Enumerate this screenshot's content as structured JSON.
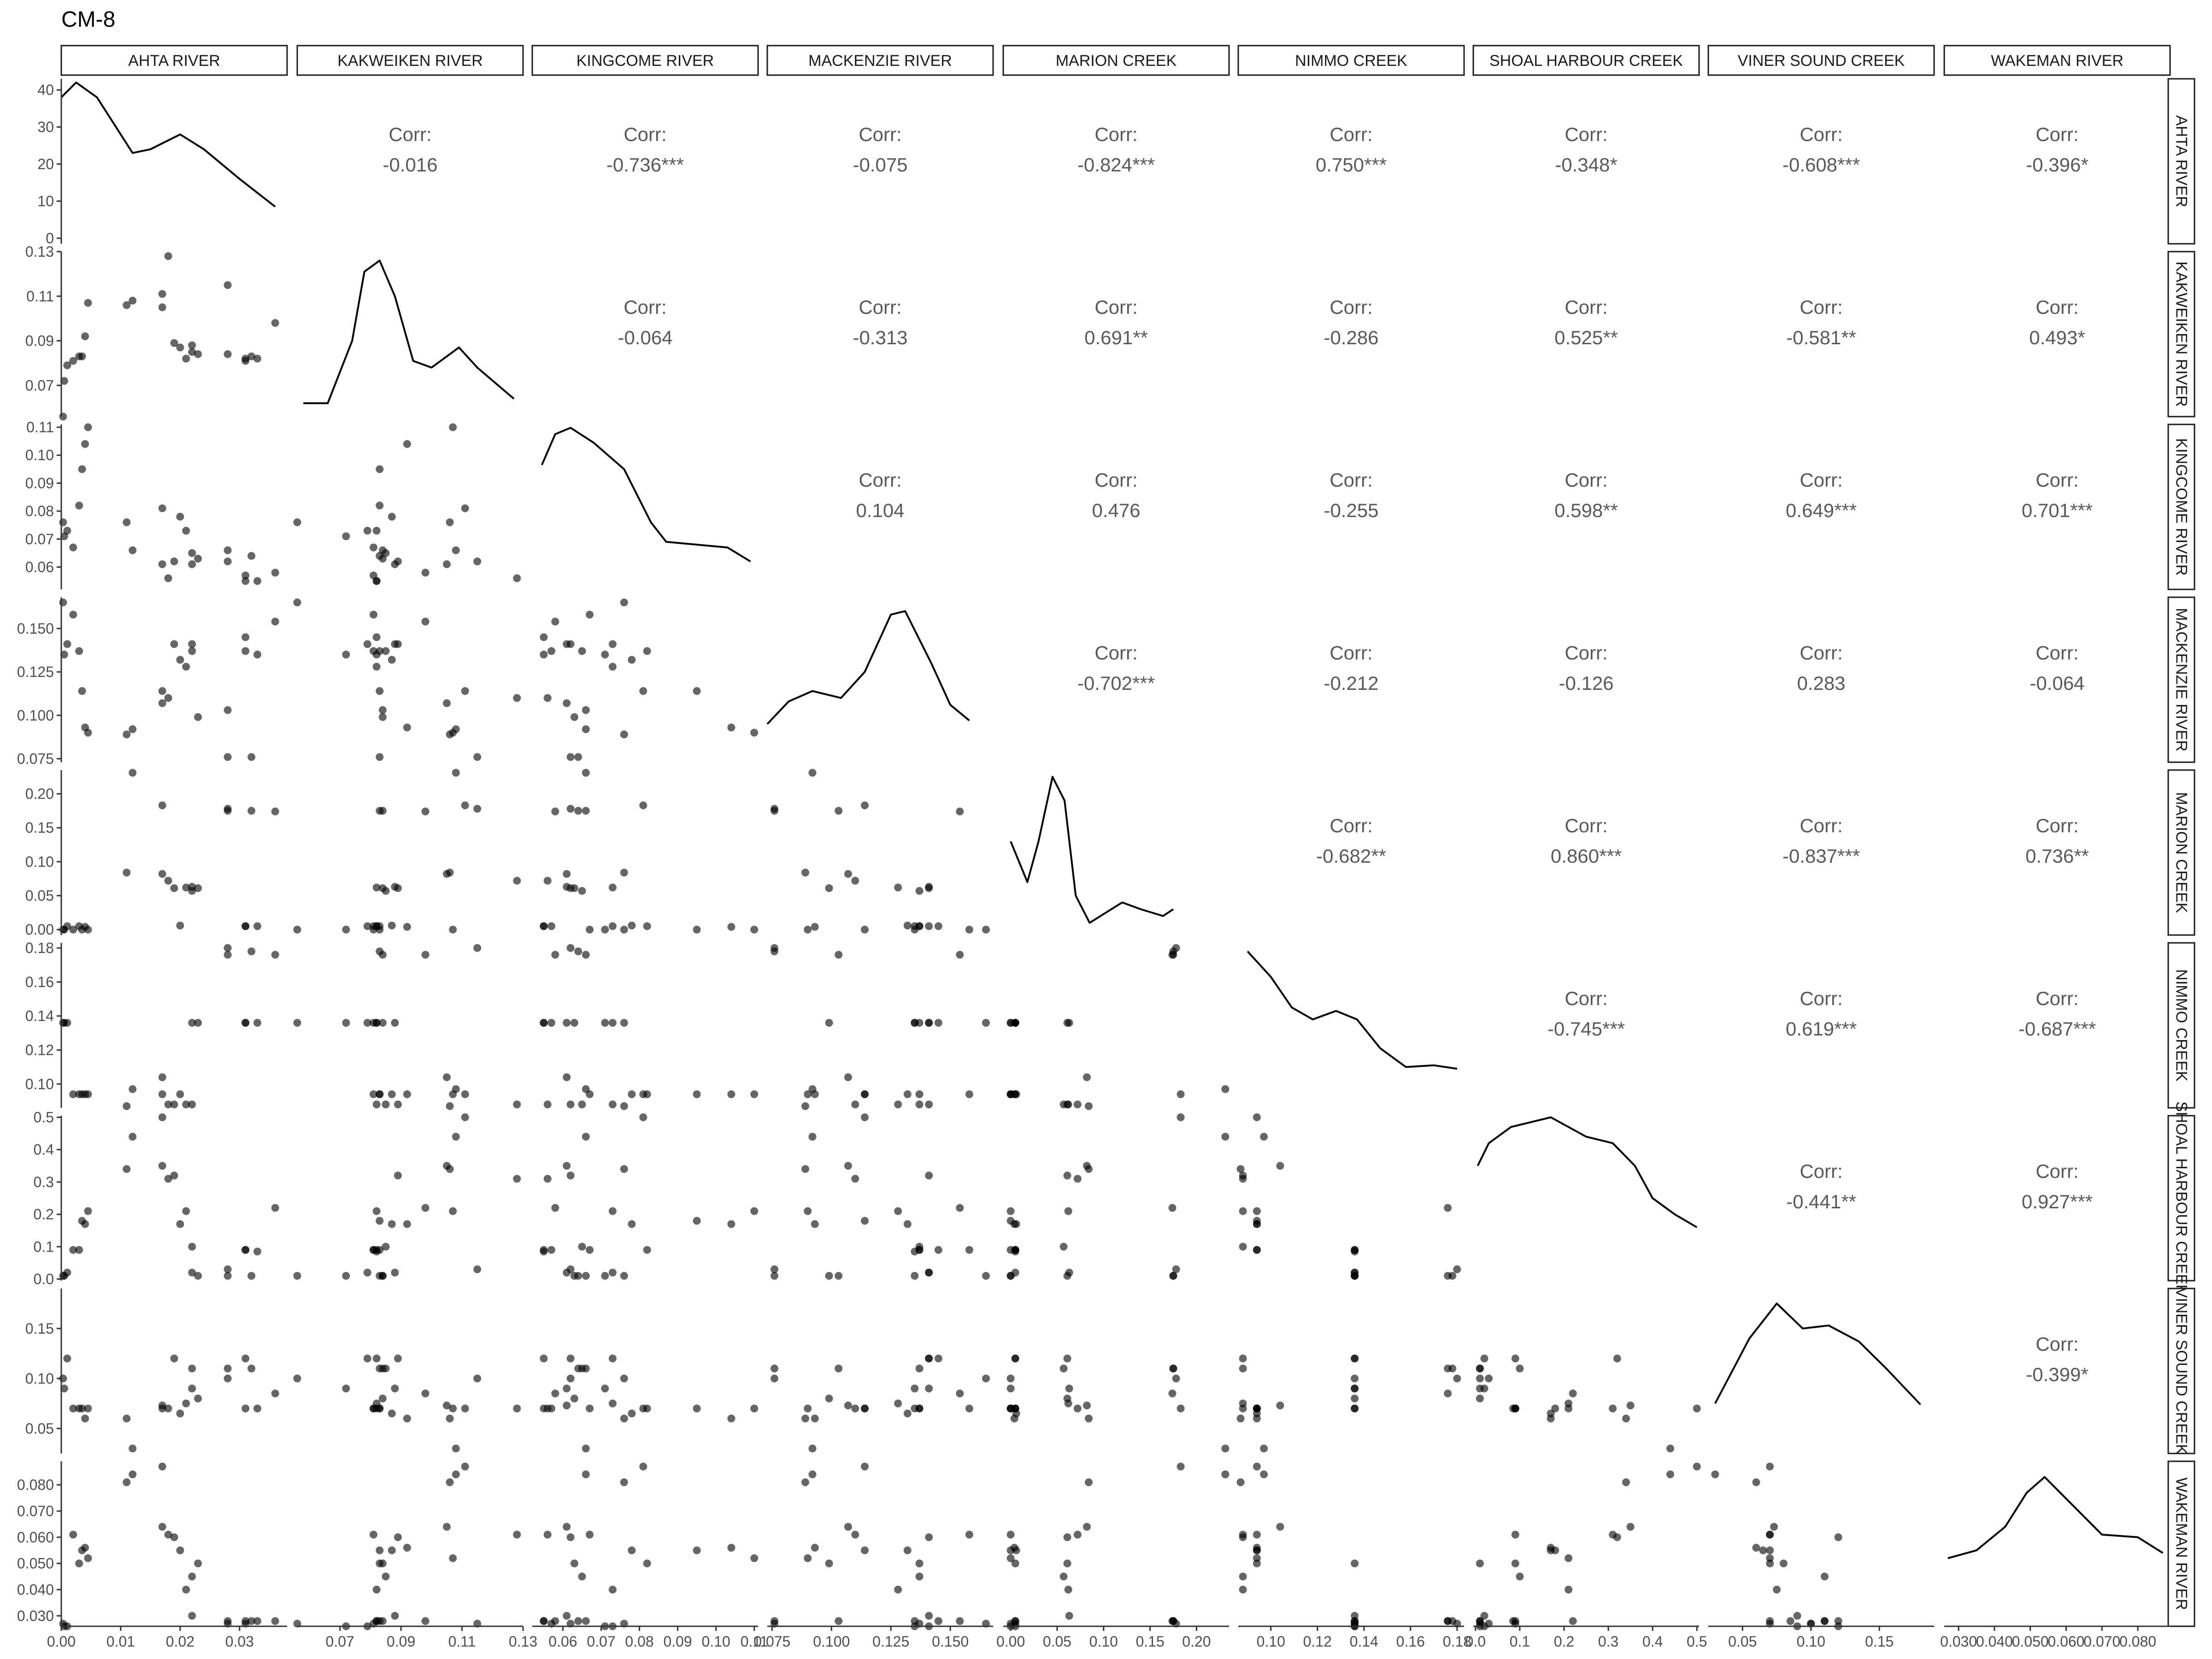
{
  "chart_data": {
    "type": "scatter",
    "title": "CM-8",
    "variables": [
      "AHTA RIVER",
      "KAKWEIKEN RIVER",
      "KINGCOME RIVER",
      "MACKENZIE RIVER",
      "MARION CREEK",
      "NIMMO CREEK",
      "SHOAL HARBOUR CREEK",
      "VINER SOUND CREEK",
      "WAKEMAN RIVER"
    ],
    "corr_label": "Corr:",
    "correlations": [
      {
        "row": 0,
        "col": 1,
        "value": "-0.016"
      },
      {
        "row": 0,
        "col": 2,
        "value": "-0.736***"
      },
      {
        "row": 0,
        "col": 3,
        "value": "-0.075"
      },
      {
        "row": 0,
        "col": 4,
        "value": "-0.824***"
      },
      {
        "row": 0,
        "col": 5,
        "value": "0.750***"
      },
      {
        "row": 0,
        "col": 6,
        "value": "-0.348*"
      },
      {
        "row": 0,
        "col": 7,
        "value": "-0.608***"
      },
      {
        "row": 0,
        "col": 8,
        "value": "-0.396*"
      },
      {
        "row": 1,
        "col": 2,
        "value": "-0.064"
      },
      {
        "row": 1,
        "col": 3,
        "value": "-0.313"
      },
      {
        "row": 1,
        "col": 4,
        "value": "0.691**"
      },
      {
        "row": 1,
        "col": 5,
        "value": "-0.286"
      },
      {
        "row": 1,
        "col": 6,
        "value": "0.525**"
      },
      {
        "row": 1,
        "col": 7,
        "value": "-0.581**"
      },
      {
        "row": 1,
        "col": 8,
        "value": "0.493*"
      },
      {
        "row": 2,
        "col": 3,
        "value": "0.104"
      },
      {
        "row": 2,
        "col": 4,
        "value": "0.476"
      },
      {
        "row": 2,
        "col": 5,
        "value": "-0.255"
      },
      {
        "row": 2,
        "col": 6,
        "value": "0.598**"
      },
      {
        "row": 2,
        "col": 7,
        "value": "0.649***"
      },
      {
        "row": 2,
        "col": 8,
        "value": "0.701***"
      },
      {
        "row": 3,
        "col": 4,
        "value": "-0.702***"
      },
      {
        "row": 3,
        "col": 5,
        "value": "-0.212"
      },
      {
        "row": 3,
        "col": 6,
        "value": "-0.126"
      },
      {
        "row": 3,
        "col": 7,
        "value": "0.283"
      },
      {
        "row": 3,
        "col": 8,
        "value": "-0.064"
      },
      {
        "row": 4,
        "col": 5,
        "value": "-0.682**"
      },
      {
        "row": 4,
        "col": 6,
        "value": "0.860***"
      },
      {
        "row": 4,
        "col": 7,
        "value": "-0.837***"
      },
      {
        "row": 4,
        "col": 8,
        "value": "0.736**"
      },
      {
        "row": 5,
        "col": 6,
        "value": "-0.745***"
      },
      {
        "row": 5,
        "col": 7,
        "value": "0.619***"
      },
      {
        "row": 5,
        "col": 8,
        "value": "-0.687***"
      },
      {
        "row": 6,
        "col": 7,
        "value": "-0.441**"
      },
      {
        "row": 6,
        "col": 8,
        "value": "0.927***"
      },
      {
        "row": 7,
        "col": 8,
        "value": "-0.399*"
      }
    ],
    "x_ticks": [
      {
        "labels": [
          "0.00",
          "0.01",
          "0.02",
          "0.03"
        ],
        "values": [
          0,
          0.01,
          0.02,
          0.03
        ],
        "range": [
          0,
          0.038
        ]
      },
      {
        "labels": [
          "0.07",
          "0.09",
          "0.11",
          "0.13"
        ],
        "values": [
          0.07,
          0.09,
          0.11,
          0.13
        ],
        "range": [
          0.056,
          0.13
        ]
      },
      {
        "labels": [
          "0.06",
          "0.07",
          "0.08",
          "0.09",
          "0.10",
          "0.11"
        ],
        "values": [
          0.06,
          0.07,
          0.08,
          0.09,
          0.1,
          0.11
        ],
        "range": [
          0.052,
          0.111
        ]
      },
      {
        "labels": [
          "0.075",
          "0.100",
          "0.125",
          "0.150"
        ],
        "values": [
          0.075,
          0.1,
          0.125,
          0.15
        ],
        "range": [
          0.073,
          0.168
        ]
      },
      {
        "labels": [
          "0.00",
          "0.05",
          "0.10",
          "0.15",
          "0.20"
        ],
        "values": [
          0,
          0.05,
          0.1,
          0.15,
          0.2
        ],
        "range": [
          -0.008,
          0.235
        ]
      },
      {
        "labels": [
          "0.10",
          "0.12",
          "0.14",
          "0.16",
          "0.18"
        ],
        "values": [
          0.1,
          0.12,
          0.14,
          0.16,
          0.18
        ],
        "range": [
          0.086,
          0.183
        ]
      },
      {
        "labels": [
          "0.0",
          "0.1",
          "0.2",
          "0.3",
          "0.4",
          "0.5"
        ],
        "values": [
          0,
          0.1,
          0.2,
          0.3,
          0.4,
          0.5
        ],
        "range": [
          -0.005,
          0.505
        ]
      },
      {
        "labels": [
          "0.05",
          "0.10",
          "0.15"
        ],
        "values": [
          0.05,
          0.1,
          0.15
        ],
        "range": [
          0.025,
          0.19
        ]
      },
      {
        "labels": [
          "0.030",
          "0.040",
          "0.050",
          "0.060",
          "0.070",
          "0.080"
        ],
        "values": [
          0.03,
          0.04,
          0.05,
          0.06,
          0.07,
          0.08
        ],
        "range": [
          0.026,
          0.089
        ]
      }
    ],
    "y_ticks": [
      {
        "labels": [
          "0",
          "10",
          "20",
          "30",
          "40"
        ],
        "values": [
          0,
          10,
          20,
          30,
          40
        ],
        "range": [
          -1.5,
          43
        ]
      },
      {
        "labels": [
          "0.07",
          "0.09",
          "0.11",
          "0.13"
        ],
        "values": [
          0.07,
          0.09,
          0.11,
          0.13
        ],
        "range": [
          0.056,
          0.13
        ]
      },
      {
        "labels": [
          "0.06",
          "0.07",
          "0.08",
          "0.09",
          "0.10",
          "0.11"
        ],
        "values": [
          0.06,
          0.07,
          0.08,
          0.09,
          0.1,
          0.11
        ],
        "range": [
          0.052,
          0.111
        ]
      },
      {
        "labels": [
          "0.075",
          "0.100",
          "0.125",
          "0.150"
        ],
        "values": [
          0.075,
          0.1,
          0.125,
          0.15
        ],
        "range": [
          0.073,
          0.168
        ]
      },
      {
        "labels": [
          "0.00",
          "0.05",
          "0.10",
          "0.15",
          "0.20"
        ],
        "values": [
          0,
          0.05,
          0.1,
          0.15,
          0.2
        ],
        "range": [
          -0.008,
          0.235
        ]
      },
      {
        "labels": [
          "0.10",
          "0.12",
          "0.14",
          "0.16",
          "0.18"
        ],
        "values": [
          0.1,
          0.12,
          0.14,
          0.16,
          0.18
        ],
        "range": [
          0.086,
          0.183
        ]
      },
      {
        "labels": [
          "0.0",
          "0.1",
          "0.2",
          "0.3",
          "0.4",
          "0.5"
        ],
        "values": [
          0,
          0.1,
          0.2,
          0.3,
          0.4,
          0.5
        ],
        "range": [
          -0.005,
          0.505
        ]
      },
      {
        "labels": [
          "0.05",
          "0.10",
          "0.15"
        ],
        "values": [
          0.05,
          0.1,
          0.15
        ],
        "range": [
          0.025,
          0.19
        ]
      },
      {
        "labels": [
          "0.030",
          "0.040",
          "0.050",
          "0.060",
          "0.070",
          "0.080"
        ],
        "values": [
          0.03,
          0.04,
          0.05,
          0.06,
          0.07,
          0.08
        ],
        "range": [
          0.026,
          0.089
        ]
      }
    ],
    "observations": [
      [
        0.0003,
        0.056,
        0.076,
        0.165,
        0.0,
        0.136,
        0.01,
        0.1,
        0.027
      ],
      [
        0.0005,
        0.072,
        0.071,
        0.135,
        0.0,
        0.136,
        0.01,
        0.09,
        0.026
      ],
      [
        0.001,
        0.079,
        0.073,
        0.141,
        0.005,
        0.136,
        0.02,
        0.12,
        0.026
      ],
      [
        0.002,
        0.081,
        0.067,
        0.158,
        0.0,
        0.094,
        0.09,
        0.07,
        0.061
      ],
      [
        0.003,
        0.083,
        0.082,
        0.137,
        0.005,
        0.094,
        0.09,
        0.07,
        0.05
      ],
      [
        0.0035,
        0.083,
        0.095,
        0.114,
        0.0,
        0.094,
        0.18,
        0.07,
        0.055
      ],
      [
        0.004,
        0.092,
        0.104,
        0.093,
        0.004,
        0.094,
        0.17,
        0.06,
        0.056
      ],
      [
        0.0045,
        0.107,
        0.11,
        0.09,
        0.0,
        0.094,
        0.21,
        0.07,
        0.052
      ],
      [
        0.011,
        0.106,
        0.076,
        0.089,
        0.084,
        0.087,
        0.34,
        0.06,
        0.081
      ],
      [
        0.012,
        0.108,
        0.066,
        0.092,
        0.231,
        0.097,
        0.44,
        0.03,
        0.084
      ],
      [
        0.017,
        0.111,
        0.081,
        0.114,
        0.183,
        0.094,
        0.5,
        0.07,
        0.087
      ],
      [
        0.017,
        0.105,
        0.061,
        0.107,
        0.082,
        0.104,
        0.35,
        0.073,
        0.064
      ],
      [
        0.018,
        0.128,
        0.056,
        0.11,
        0.072,
        0.088,
        0.31,
        0.07,
        0.061
      ],
      [
        0.019,
        0.089,
        0.062,
        0.141,
        0.061,
        0.088,
        0.32,
        0.12,
        0.06
      ],
      [
        0.02,
        0.087,
        0.078,
        0.132,
        0.006,
        0.094,
        0.17,
        0.065,
        0.055
      ],
      [
        0.021,
        0.082,
        0.073,
        0.128,
        0.062,
        0.088,
        0.21,
        0.075,
        0.04
      ],
      [
        0.022,
        0.085,
        0.065,
        0.137,
        0.057,
        0.088,
        0.1,
        0.11,
        0.045
      ],
      [
        0.022,
        0.088,
        0.061,
        0.141,
        0.063,
        0.136,
        0.02,
        0.09,
        0.03
      ],
      [
        0.023,
        0.084,
        0.063,
        0.099,
        0.061,
        0.136,
        0.01,
        0.08,
        0.05
      ],
      [
        0.028,
        0.115,
        0.062,
        0.076,
        0.178,
        0.18,
        0.03,
        0.1,
        0.027
      ],
      [
        0.028,
        0.084,
        0.066,
        0.103,
        0.175,
        0.176,
        0.01,
        0.11,
        0.028
      ],
      [
        0.031,
        0.081,
        0.057,
        0.137,
        0.005,
        0.136,
        0.09,
        0.07,
        0.027
      ],
      [
        0.031,
        0.082,
        0.055,
        0.145,
        0.005,
        0.136,
        0.09,
        0.12,
        0.028
      ],
      [
        0.032,
        0.083,
        0.064,
        0.076,
        0.175,
        0.178,
        0.01,
        0.11,
        0.028
      ],
      [
        0.033,
        0.082,
        0.055,
        0.135,
        0.005,
        0.136,
        0.085,
        0.07,
        0.028
      ],
      [
        0.036,
        0.098,
        0.058,
        0.154,
        0.174,
        0.176,
        0.22,
        0.085,
        0.028
      ]
    ],
    "density_curves": [
      [
        [
          0.0,
          38
        ],
        [
          0.0025,
          42
        ],
        [
          0.006,
          38
        ],
        [
          0.012,
          23
        ],
        [
          0.015,
          24
        ],
        [
          0.02,
          28
        ],
        [
          0.024,
          24
        ],
        [
          0.03,
          16
        ],
        [
          0.036,
          8.5
        ]
      ],
      [
        [
          0.058,
          0.062
        ],
        [
          0.066,
          0.062
        ],
        [
          0.074,
          0.09
        ],
        [
          0.078,
          0.121
        ],
        [
          0.083,
          0.126
        ],
        [
          0.088,
          0.11
        ],
        [
          0.094,
          0.081
        ],
        [
          0.1,
          0.078
        ],
        [
          0.109,
          0.087
        ],
        [
          0.115,
          0.078
        ],
        [
          0.127,
          0.064
        ]
      ],
      [
        [
          0.0545,
          0.0965
        ],
        [
          0.058,
          0.1075
        ],
        [
          0.062,
          0.1098
        ],
        [
          0.068,
          0.1045
        ],
        [
          0.076,
          0.095
        ],
        [
          0.083,
          0.076
        ],
        [
          0.087,
          0.069
        ],
        [
          0.095,
          0.068
        ],
        [
          0.103,
          0.067
        ],
        [
          0.109,
          0.062
        ]
      ],
      [
        [
          0.073,
          0.095
        ],
        [
          0.082,
          0.108
        ],
        [
          0.092,
          0.114
        ],
        [
          0.104,
          0.11
        ],
        [
          0.114,
          0.125
        ],
        [
          0.125,
          0.158
        ],
        [
          0.131,
          0.16
        ],
        [
          0.142,
          0.13
        ],
        [
          0.15,
          0.106
        ],
        [
          0.158,
          0.097
        ]
      ],
      [
        [
          0.0,
          0.13
        ],
        [
          0.018,
          0.07
        ],
        [
          0.03,
          0.13
        ],
        [
          0.045,
          0.225
        ],
        [
          0.058,
          0.19
        ],
        [
          0.07,
          0.05
        ],
        [
          0.085,
          0.01
        ],
        [
          0.12,
          0.04
        ],
        [
          0.14,
          0.03
        ],
        [
          0.164,
          0.02
        ],
        [
          0.175,
          0.03
        ]
      ],
      [
        [
          0.09,
          0.178
        ],
        [
          0.1,
          0.163
        ],
        [
          0.109,
          0.145
        ],
        [
          0.118,
          0.138
        ],
        [
          0.128,
          0.143
        ],
        [
          0.137,
          0.138
        ],
        [
          0.147,
          0.121
        ],
        [
          0.158,
          0.11
        ],
        [
          0.17,
          0.111
        ],
        [
          0.18,
          0.109
        ]
      ],
      [
        [
          0.005,
          0.35
        ],
        [
          0.03,
          0.42
        ],
        [
          0.08,
          0.47
        ],
        [
          0.17,
          0.5
        ],
        [
          0.25,
          0.44
        ],
        [
          0.31,
          0.42
        ],
        [
          0.36,
          0.35
        ],
        [
          0.4,
          0.25
        ],
        [
          0.45,
          0.2
        ],
        [
          0.5,
          0.16
        ]
      ],
      [
        [
          0.03,
          0.075
        ],
        [
          0.055,
          0.14
        ],
        [
          0.075,
          0.175
        ],
        [
          0.094,
          0.15
        ],
        [
          0.113,
          0.153
        ],
        [
          0.135,
          0.137
        ],
        [
          0.155,
          0.11
        ],
        [
          0.18,
          0.074
        ]
      ],
      [
        [
          0.027,
          0.052
        ],
        [
          0.035,
          0.055
        ],
        [
          0.043,
          0.064
        ],
        [
          0.049,
          0.077
        ],
        [
          0.054,
          0.083
        ],
        [
          0.062,
          0.072
        ],
        [
          0.07,
          0.061
        ],
        [
          0.08,
          0.06
        ],
        [
          0.087,
          0.054
        ]
      ]
    ],
    "grid": "off",
    "point_style": "semi-transparent black"
  }
}
